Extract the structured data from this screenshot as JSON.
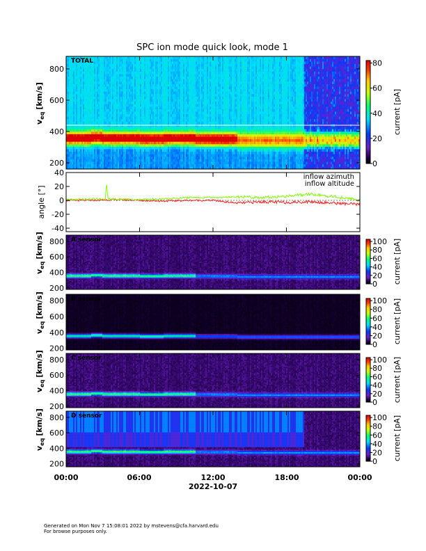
{
  "title": "SPC ion mode quick look, mode 1",
  "footer": {
    "line1": "Generated on Mon Nov  7 15:08:01 2022 by mstevens@cfa.harvard.edu",
    "line2": "For browse purposes only."
  },
  "x_axis": {
    "ticks": [
      "00:00",
      "06:00",
      "12:00",
      "18:00",
      "00:00"
    ],
    "tick_hours": [
      0,
      6,
      12,
      18,
      24
    ],
    "date_label": "2022-10-07",
    "range_hours": [
      0,
      24
    ]
  },
  "colors": {
    "background": "#000000",
    "inflow_azimuth": "#ff2020",
    "inflow_altitude": "#80ff00"
  },
  "chart_data": [
    {
      "type": "heatmap",
      "label": "TOTAL",
      "ylabel_main": "v",
      "ylabel_sub": "eq",
      "ylabel_unit": "[km/s]",
      "ylim": [
        160,
        880
      ],
      "yticks": [
        200,
        400,
        600,
        800
      ],
      "colorbar": {
        "label": "current [pA]",
        "ticks": [
          0,
          20,
          40,
          60,
          80
        ],
        "range": [
          0,
          82
        ]
      },
      "reference_line_speed": 440,
      "data_gap_hours": [
        19.5,
        24
      ],
      "peak_speed_profile": {
        "hours": [
          0,
          4,
          10,
          14,
          18,
          24
        ],
        "speed": [
          355,
          350,
          358,
          345,
          345,
          340
        ]
      }
    },
    {
      "type": "line",
      "ylabel": "angle [°]",
      "ylim": [
        -45,
        40
      ],
      "yticks": [
        -40,
        -20,
        0,
        20,
        40
      ],
      "series": [
        {
          "name": "inflow azimuth",
          "hours": [
            0,
            2,
            4,
            6,
            8,
            10,
            12,
            14,
            16,
            18,
            20,
            22,
            24
          ],
          "values": [
            0,
            0,
            1,
            0,
            -1,
            0,
            0,
            -4,
            -2,
            -3,
            -2,
            -4,
            -6
          ]
        },
        {
          "name": "inflow altitude",
          "hours": [
            0,
            2,
            3.2,
            3.3,
            3.4,
            4,
            6,
            8,
            10,
            12,
            14,
            16,
            18,
            20,
            22,
            24
          ],
          "values": [
            1,
            2,
            2,
            27,
            2,
            2,
            1,
            2,
            4,
            4,
            5,
            4,
            6,
            9,
            5,
            0
          ]
        }
      ]
    },
    {
      "type": "heatmap",
      "label": "A sensor",
      "ylabel_main": "v",
      "ylabel_sub": "eq",
      "ylabel_unit": "[km/s]",
      "ylim": [
        180,
        880
      ],
      "yticks": [
        200,
        400,
        600,
        800
      ],
      "colorbar": {
        "label": "current [pA]",
        "ticks": [
          0,
          20,
          40,
          60,
          80,
          100
        ],
        "range": [
          0,
          105
        ]
      }
    },
    {
      "type": "heatmap",
      "label": "B sensor",
      "ylabel_main": "v",
      "ylabel_sub": "eq",
      "ylabel_unit": "[km/s]",
      "ylim": [
        180,
        880
      ],
      "yticks": [
        200,
        400,
        600,
        800
      ],
      "colorbar": {
        "label": "current [pA]",
        "ticks": [
          0,
          20,
          40,
          60,
          80,
          100
        ],
        "range": [
          0,
          105
        ]
      }
    },
    {
      "type": "heatmap",
      "label": "C sensor",
      "ylabel_main": "v",
      "ylabel_sub": "eq",
      "ylabel_unit": "[km/s]",
      "ylim": [
        180,
        880
      ],
      "yticks": [
        200,
        400,
        600,
        800
      ],
      "colorbar": {
        "label": "current [pA]",
        "ticks": [
          0,
          20,
          40,
          60,
          80,
          100
        ],
        "range": [
          0,
          105
        ]
      }
    },
    {
      "type": "heatmap",
      "label": "D sensor",
      "ylabel_main": "v",
      "ylabel_sub": "eq",
      "ylabel_unit": "[km/s]",
      "ylim": [
        160,
        880
      ],
      "yticks": [
        200,
        400,
        600,
        800
      ],
      "colorbar": {
        "label": "current [pA]",
        "ticks": [
          0,
          20,
          40,
          60,
          80,
          100
        ],
        "range": [
          0,
          105
        ]
      }
    }
  ]
}
